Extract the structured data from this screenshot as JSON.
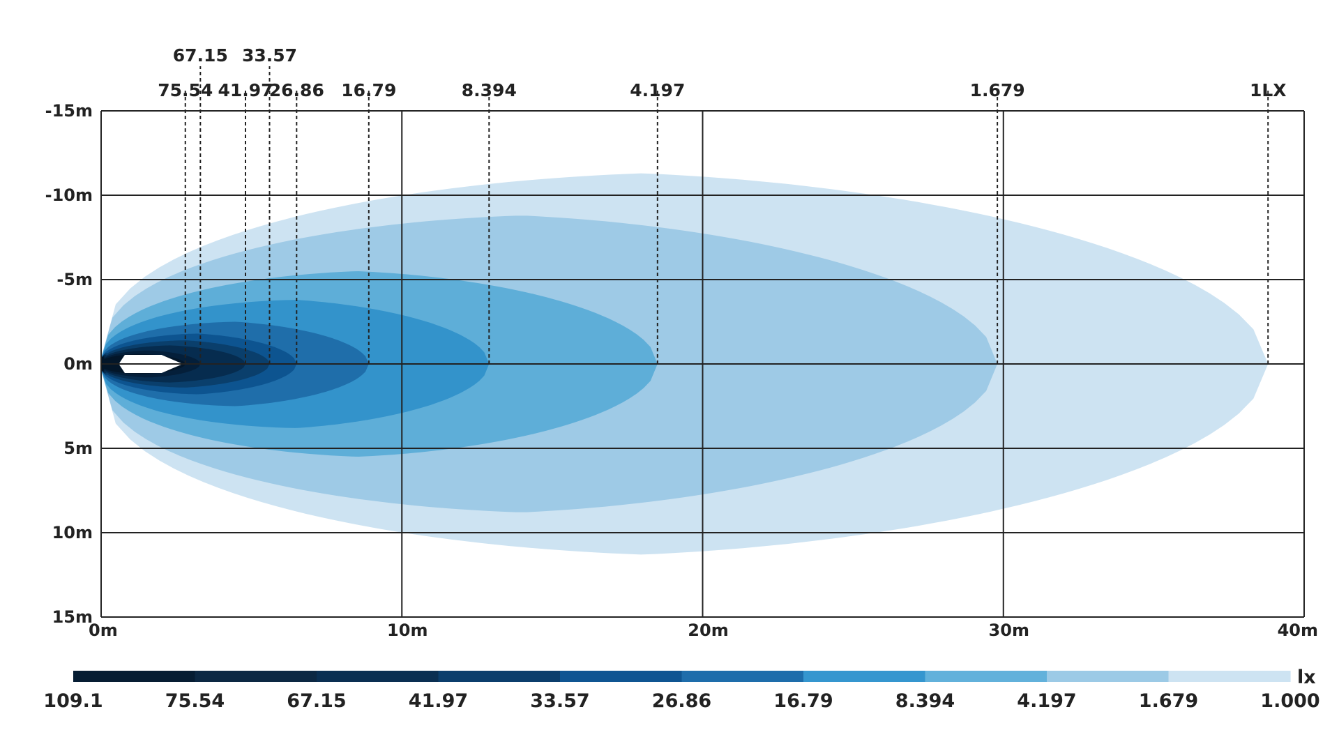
{
  "chart_data": {
    "type": "isolux-contour",
    "title": "",
    "xlabel": "",
    "ylabel": "",
    "x_axis": {
      "ticks": [
        "0m",
        "10m",
        "20m",
        "30m",
        "40m"
      ],
      "values": [
        0,
        10,
        20,
        30,
        40
      ],
      "range": [
        0,
        40
      ]
    },
    "y_axis": {
      "ticks": [
        "-15m",
        "-10m",
        "-5m",
        "0m",
        "5m",
        "10m",
        "15m"
      ],
      "values": [
        -15,
        -10,
        -5,
        0,
        5,
        10,
        15
      ],
      "range": [
        -15,
        15
      ]
    },
    "grid": true,
    "beam_origin_x": 0,
    "contours": [
      {
        "lux": 1.0,
        "label": "1LX",
        "color": "#cde3f2",
        "reach_x": 38.8,
        "max_half_width": 11.3,
        "peak_x": 18.0
      },
      {
        "lux": 1.679,
        "label": "1.679",
        "color": "#9ecae6",
        "reach_x": 29.8,
        "max_half_width": 8.8,
        "peak_x": 14.0
      },
      {
        "lux": 4.197,
        "label": "4.197",
        "color": "#5eaed8",
        "reach_x": 18.5,
        "max_half_width": 5.5,
        "peak_x": 8.5
      },
      {
        "lux": 8.394,
        "label": "8.394",
        "color": "#3393cb",
        "reach_x": 12.9,
        "max_half_width": 3.8,
        "peak_x": 6.5
      },
      {
        "lux": 16.79,
        "label": "16.79",
        "color": "#1f6eaa",
        "reach_x": 8.9,
        "max_half_width": 2.5,
        "peak_x": 4.5
      },
      {
        "lux": 26.86,
        "label": "26.86",
        "color": "#0d5490",
        "reach_x": 6.5,
        "max_half_width": 1.8,
        "peak_x": 3.2
      },
      {
        "lux": 33.57,
        "label": "33.57",
        "color": "#0a3f6c",
        "reach_x": 5.6,
        "max_half_width": 1.4,
        "peak_x": 2.8
      },
      {
        "lux": 41.97,
        "label": "41.97",
        "color": "#062c4f",
        "reach_x": 4.8,
        "max_half_width": 1.1,
        "peak_x": 2.3
      },
      {
        "lux": 67.15,
        "label": "67.15",
        "color": "#041f3a",
        "reach_x": 3.3,
        "max_half_width": 0.8,
        "peak_x": 1.6
      },
      {
        "lux": 75.54,
        "label": "75.54",
        "color": "#031629",
        "reach_x": 2.8,
        "max_half_width": 0.6,
        "peak_x": 1.3
      }
    ],
    "colorbar": {
      "unit": "lx",
      "labels": [
        "109.1",
        "75.54",
        "67.15",
        "41.97",
        "33.57",
        "26.86",
        "16.79",
        "8.394",
        "4.197",
        "1.679",
        "1.000"
      ],
      "colors": [
        "#061d33",
        "#0c2843",
        "#0a2f52",
        "#0b3e6c",
        "#0f5592",
        "#1e6dab",
        "#3596cf",
        "#62b1db",
        "#9ccae6",
        "#cde3f2"
      ]
    }
  }
}
